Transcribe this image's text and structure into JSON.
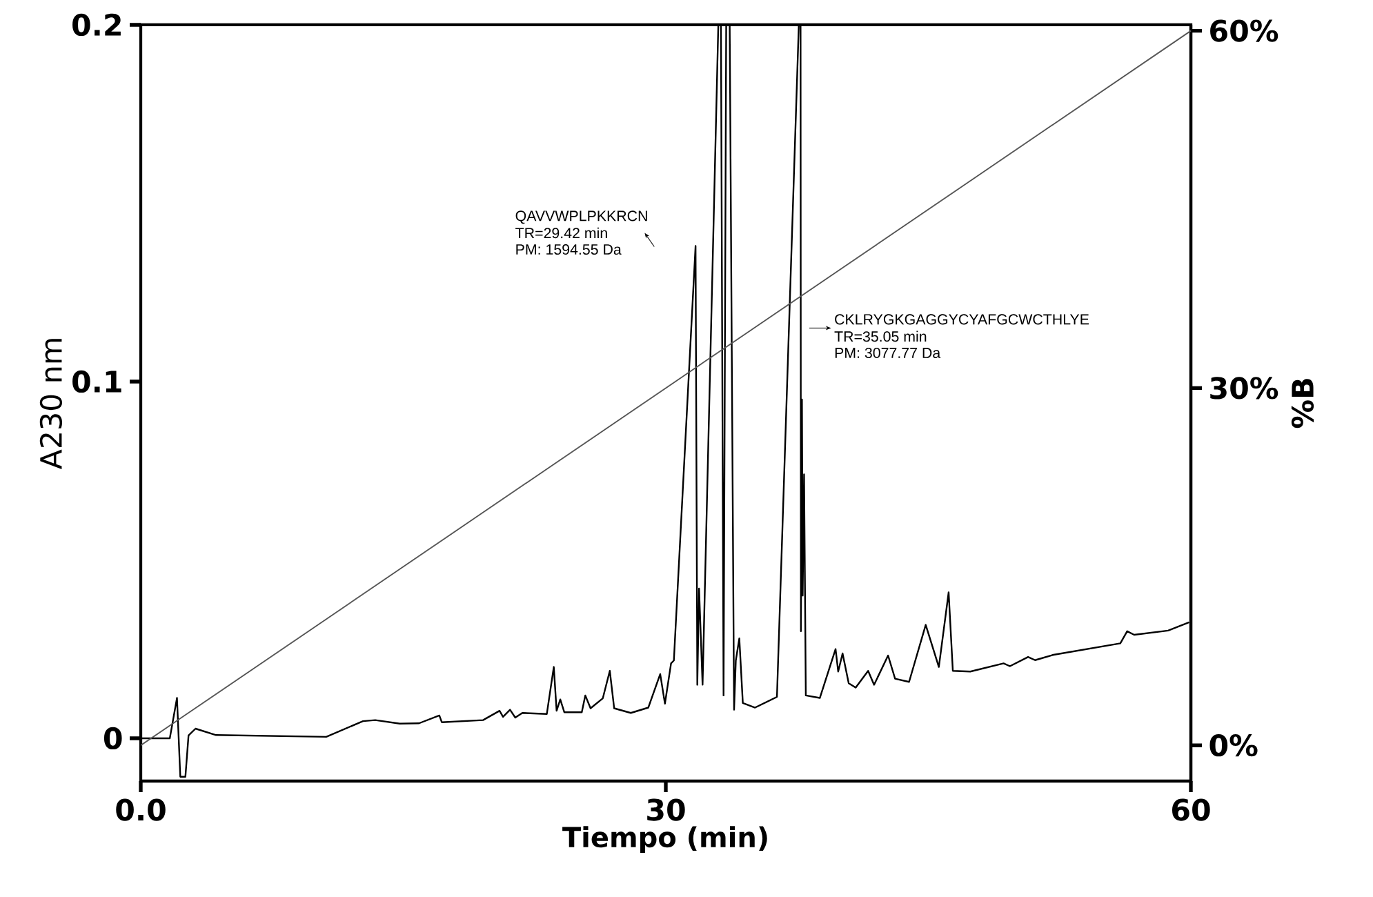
{
  "chart_data": {
    "type": "line",
    "xlabel": "Tiempo (min)",
    "ylabel": "A230 nm",
    "y2label": "%B",
    "xlim": [
      0,
      60
    ],
    "xticks": [
      {
        "value": 0,
        "label": "0.0"
      },
      30,
      60
    ],
    "ylim": [
      -0.012,
      0.2
    ],
    "yticks": [
      0,
      0.1,
      0.2
    ],
    "y2lim": [
      -3,
      60.5
    ],
    "y2ticks": [
      {
        "value": 0,
        "label": "0%"
      },
      {
        "value": 30,
        "label": "30%"
      },
      {
        "value": 60,
        "label": "60%"
      }
    ],
    "annotations": [
      "QAVVWPLPKKRCN",
      "TR=29.42 min",
      "PM: 1594.55 Da",
      "CKLRYGKGAGGYCYAFGCWCTHLYE",
      "TR=35.05 min",
      "PM: 3077.77 Da"
    ],
    "series": [
      {
        "color": "#000000",
        "x": [
          0,
          1.66,
          2.07,
          2.26,
          2.55,
          2.73,
          3.13,
          4.3,
          10.6,
          12.7,
          13.4,
          14.8,
          15.9,
          17.06,
          17.2,
          19.56,
          20.5,
          20.7,
          21.1,
          21.4,
          21.8,
          23.2,
          23.6,
          23.76,
          23.97,
          24.2,
          25.2,
          25.4,
          25.7,
          26.4,
          26.8,
          27.05,
          28.0,
          29.0,
          29.68,
          29.95,
          30.3,
          30.46,
          31.7,
          31.8,
          31.9,
          32.1,
          33.0,
          33.15,
          33.3,
          33.45,
          33.65,
          33.9,
          34.0,
          34.2,
          34.4,
          35.1,
          36.35,
          37.6,
          37.7,
          37.72,
          37.78,
          37.82,
          37.9,
          38.0,
          38.8,
          39.7,
          39.85,
          40.1,
          40.45,
          40.85,
          41.56,
          41.9,
          42.7,
          43.1,
          43.9,
          44.85,
          45.6,
          46.16,
          46.4,
          47.4,
          49.3,
          49.66,
          50.7,
          51.1,
          52.15,
          55.97,
          56.36,
          56.76,
          58.7,
          59.9
        ],
        "values": [
          0,
          0,
          0.0113,
          -0.0108,
          -0.0108,
          0.0008,
          0.0027,
          0.0009,
          0.0004,
          0.0048,
          0.0051,
          0.0041,
          0.0042,
          0.0064,
          0.0045,
          0.0051,
          0.0077,
          0.006,
          0.008,
          0.0058,
          0.0071,
          0.0068,
          0.02,
          0.0077,
          0.0109,
          0.0073,
          0.0073,
          0.012,
          0.0084,
          0.0112,
          0.0189,
          0.0084,
          0.0071,
          0.0086,
          0.018,
          0.0097,
          0.021,
          0.0218,
          0.138,
          0.015,
          0.042,
          0.015,
          0.2,
          0.2,
          0.012,
          0.2,
          0.2,
          0.008,
          0.0218,
          0.028,
          0.0099,
          0.0086,
          0.0116,
          0.2,
          0.2,
          0.03,
          0.095,
          0.04,
          0.074,
          0.012,
          0.0113,
          0.025,
          0.0187,
          0.0238,
          0.0154,
          0.0142,
          0.0189,
          0.015,
          0.0232,
          0.0167,
          0.0158,
          0.0318,
          0.02,
          0.0409,
          0.0189,
          0.0187,
          0.021,
          0.0202,
          0.0228,
          0.0219,
          0.0234,
          0.0266,
          0.03,
          0.029,
          0.0302,
          0.0325
        ]
      },
      {
        "type": "line",
        "axis": "y2",
        "color": "#555555",
        "x": [
          0,
          60
        ],
        "values": [
          0,
          60
        ]
      }
    ]
  }
}
